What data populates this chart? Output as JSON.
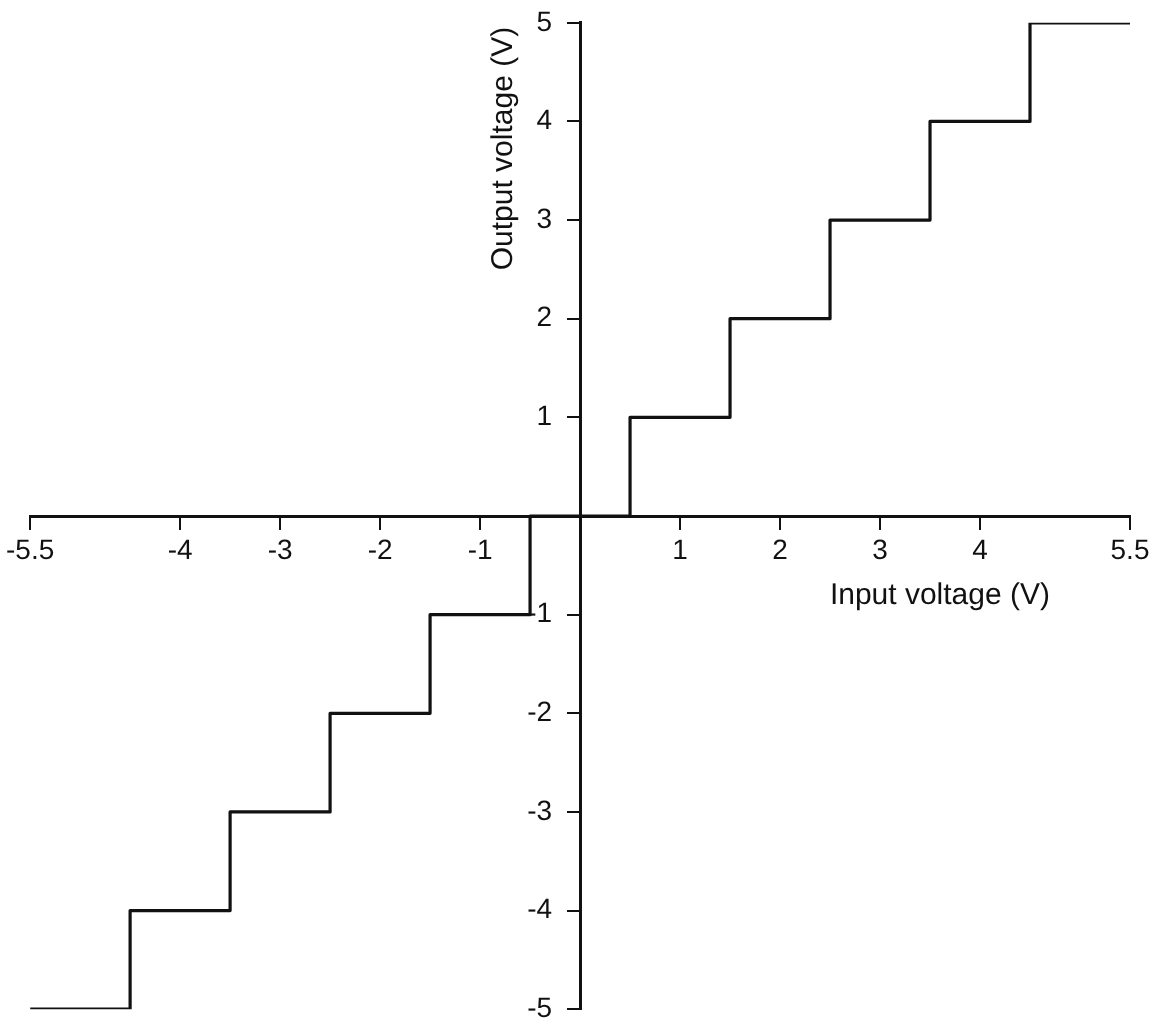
{
  "chart_data": {
    "type": "step",
    "xlabel": "Input voltage (V)",
    "ylabel": "Output voltage (V)",
    "x": [
      -5.5,
      -4.5,
      -3.5,
      -2.5,
      -1.5,
      -0.5,
      0.5,
      1.5,
      2.5,
      3.5,
      4.5,
      5.5
    ],
    "series": [
      {
        "color": "#111111",
        "values": [
          -5,
          -4,
          -3,
          -2,
          -1,
          0,
          1,
          2,
          3,
          4,
          5,
          5
        ]
      }
    ],
    "xlim": [
      -5.5,
      5.5
    ],
    "ylim": [
      -5,
      5
    ],
    "xticks": [
      -5.5,
      -4,
      -3,
      -2,
      -1,
      1,
      2,
      3,
      4,
      5.5
    ],
    "yticks": [
      -5,
      -4,
      -3,
      -2,
      -1,
      1,
      2,
      3,
      4,
      5
    ],
    "grid": false,
    "legend": false,
    "marker": "none",
    "line_style": "solid"
  }
}
